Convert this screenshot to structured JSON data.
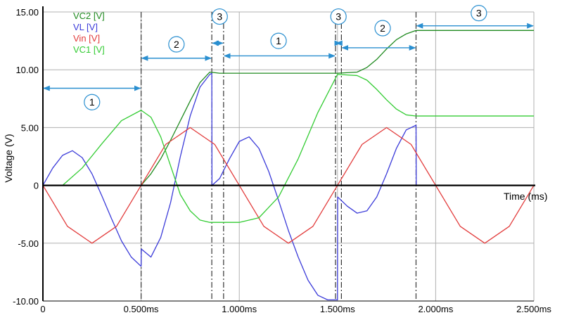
{
  "chart_data": {
    "type": "line",
    "title": "",
    "xlabel": "Time (ms)",
    "ylabel": "Voltage (V)",
    "xlim": [
      0,
      2.5
    ],
    "ylim": [
      -10,
      15
    ],
    "grid": true,
    "legend_position": "top-left",
    "x_ticks": [
      {
        "value": 0,
        "label": "0"
      },
      {
        "value": 0.5,
        "label": "0.500ms"
      },
      {
        "value": 1.0,
        "label": "1.000ms"
      },
      {
        "value": 1.5,
        "label": "1.500ms"
      },
      {
        "value": 2.0,
        "label": "2.000ms"
      },
      {
        "value": 2.5,
        "label": "2.500ms"
      }
    ],
    "y_ticks": [
      {
        "value": 15,
        "label": "15.00"
      },
      {
        "value": 10,
        "label": "10.00"
      },
      {
        "value": 5,
        "label": "5.00"
      },
      {
        "value": 0,
        "label": "0"
      },
      {
        "value": -5,
        "label": "-5.00"
      },
      {
        "value": -10,
        "label": "-10.00"
      }
    ],
    "series": [
      {
        "name": "VC2 [V]",
        "color": "#1f8a1f",
        "x": [
          0,
          0.1,
          0.2,
          0.3,
          0.4,
          0.5,
          0.55,
          0.6,
          0.65,
          0.7,
          0.75,
          0.8,
          0.85,
          0.9,
          0.95,
          1.0,
          1.1,
          1.2,
          1.3,
          1.4,
          1.5,
          1.6,
          1.65,
          1.7,
          1.75,
          1.8,
          1.85,
          1.9,
          1.95,
          2.0,
          2.1,
          2.2,
          2.3,
          2.4,
          2.5
        ],
        "values": [
          0,
          0,
          0,
          0,
          0,
          0,
          1.0,
          2.3,
          3.9,
          5.6,
          7.3,
          8.9,
          9.8,
          9.7,
          9.7,
          9.7,
          9.7,
          9.7,
          9.7,
          9.7,
          9.7,
          9.8,
          10.2,
          10.9,
          11.8,
          12.6,
          13.1,
          13.4,
          13.4,
          13.4,
          13.4,
          13.4,
          13.4,
          13.4,
          13.4
        ]
      },
      {
        "name": "VL [V]",
        "color": "#3b3bd9",
        "x": [
          0,
          0.05,
          0.1,
          0.15,
          0.2,
          0.25,
          0.3,
          0.35,
          0.4,
          0.45,
          0.5,
          0.501,
          0.55,
          0.6,
          0.65,
          0.7,
          0.75,
          0.8,
          0.85,
          0.86,
          0.861,
          0.9,
          0.95,
          1.0,
          1.05,
          1.1,
          1.15,
          1.2,
          1.25,
          1.3,
          1.35,
          1.4,
          1.45,
          1.5,
          1.501,
          1.55,
          1.6,
          1.65,
          1.7,
          1.75,
          1.8,
          1.85,
          1.9,
          1.901,
          2.0,
          2.5
        ],
        "values": [
          0,
          1.5,
          2.6,
          3.0,
          2.4,
          1.0,
          -0.9,
          -2.9,
          -4.8,
          -6.2,
          -7.0,
          -5.5,
          -6.2,
          -4.5,
          -1.5,
          2.5,
          6.0,
          8.5,
          9.6,
          9.7,
          0,
          0.6,
          2.3,
          3.8,
          4.2,
          3.2,
          1.2,
          -1.3,
          -3.9,
          -6.2,
          -8.2,
          -9.5,
          -9.9,
          -9.9,
          -1.0,
          -1.8,
          -2.4,
          -2.2,
          -1.0,
          1.0,
          3.2,
          4.8,
          5.2,
          0,
          0,
          0
        ]
      },
      {
        "name": "Vin [V]",
        "color": "#e23b3b",
        "x": [
          0,
          0.125,
          0.25,
          0.375,
          0.5,
          0.625,
          0.75,
          0.875,
          1.0,
          1.125,
          1.25,
          1.375,
          1.5,
          1.625,
          1.75,
          1.875,
          2.0,
          2.125,
          2.25,
          2.375,
          2.5
        ],
        "values": [
          0,
          -3.54,
          -5,
          -3.54,
          0,
          3.54,
          5,
          3.54,
          0,
          -3.54,
          -5,
          -3.54,
          0,
          3.54,
          5,
          3.54,
          0,
          -3.54,
          -5,
          -3.54,
          0
        ]
      },
      {
        "name": "VC1 [V]",
        "color": "#33cc33",
        "x": [
          0,
          0.1,
          0.2,
          0.3,
          0.4,
          0.5,
          0.55,
          0.6,
          0.65,
          0.7,
          0.75,
          0.8,
          0.85,
          0.9,
          0.95,
          1.0,
          1.1,
          1.2,
          1.3,
          1.4,
          1.5,
          1.6,
          1.65,
          1.7,
          1.75,
          1.8,
          1.85,
          1.9,
          1.95,
          2.0,
          2.5
        ],
        "values": [
          0,
          0,
          1.5,
          3.6,
          5.6,
          6.5,
          5.9,
          4.2,
          1.7,
          -0.8,
          -2.2,
          -3.0,
          -3.2,
          -3.2,
          -3.2,
          -3.2,
          -2.8,
          -1.0,
          2.3,
          6.3,
          9.6,
          9.5,
          9.1,
          8.3,
          7.4,
          6.6,
          6.1,
          6.0,
          6.0,
          6.0,
          6.0
        ]
      }
    ],
    "vertical_markers": [
      0.5,
      0.86,
      0.92,
      1.49,
      1.52,
      1.9
    ],
    "annotations": [
      {
        "label": "1",
        "x_from": 0,
        "x_to": 0.5,
        "y_arrow": 8.4,
        "x_circle": 0.25,
        "y_circle": 7.2
      },
      {
        "label": "2",
        "x_from": 0.5,
        "x_to": 0.86,
        "y_arrow": 11.0,
        "x_circle": 0.68,
        "y_circle": 12.2
      },
      {
        "label": "3",
        "x_from": 0.86,
        "x_to": 0.92,
        "y_arrow": 12.3,
        "x_circle": 0.9,
        "y_circle": 14.6
      },
      {
        "label": "1",
        "x_from": 0.92,
        "x_to": 1.49,
        "y_arrow": 11.2,
        "x_circle": 1.2,
        "y_circle": 12.5
      },
      {
        "label": "3",
        "x_from": 1.49,
        "x_to": 1.52,
        "y_arrow": 12.3,
        "x_circle": 1.505,
        "y_circle": 14.6
      },
      {
        "label": "2",
        "x_from": 1.52,
        "x_to": 1.9,
        "y_arrow": 11.9,
        "x_circle": 1.73,
        "y_circle": 13.6
      },
      {
        "label": "3",
        "x_from": 1.9,
        "x_to": 2.5,
        "y_arrow": 13.8,
        "x_circle": 2.22,
        "y_circle": 14.9
      }
    ]
  }
}
